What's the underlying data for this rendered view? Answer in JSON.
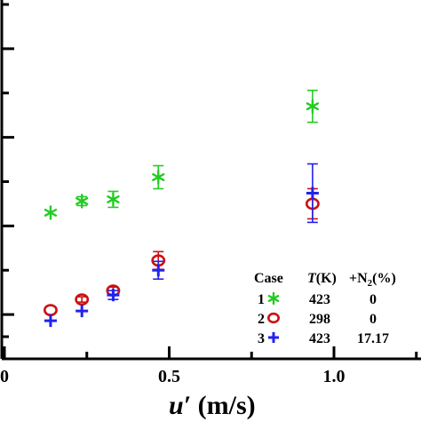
{
  "chart_data": {
    "type": "scatter",
    "title": "",
    "xlabel_main": "u′",
    "xlabel_unit": " (m/s)",
    "ylabel": "",
    "xlim": [
      0.0,
      1.3
    ],
    "x_ticks": [
      {
        "value": 0.0,
        "label": "0"
      },
      {
        "value": 0.5,
        "label": "0.5"
      },
      {
        "value": 1.0,
        "label": "1.0"
      }
    ],
    "ylim": [
      0.0,
      4.05
    ],
    "y_major_ticks": [
      0.5,
      1.5,
      2.5,
      3.5
    ],
    "y_minor_ticks": [
      0.25,
      1.0,
      2.0,
      3.0,
      4.0
    ],
    "colors": {
      "case1": "#22cc22",
      "case2": "#cc1111",
      "case3": "#2222ee"
    },
    "series": [
      {
        "name": "1",
        "marker": "asterisk",
        "color": "#22cc22",
        "points": [
          {
            "x": 0.14,
            "y": 1.65,
            "err": 0
          },
          {
            "x": 0.235,
            "y": 1.78,
            "err": 0.05
          },
          {
            "x": 0.33,
            "y": 1.8,
            "err": 0.09
          },
          {
            "x": 0.467,
            "y": 2.05,
            "err": 0.13
          },
          {
            "x": 0.935,
            "y": 2.85,
            "err": 0.18
          }
        ]
      },
      {
        "name": "2",
        "marker": "circle",
        "color": "#cc1111",
        "points": [
          {
            "x": 0.14,
            "y": 0.55,
            "err": 0
          },
          {
            "x": 0.235,
            "y": 0.67,
            "err": 0.03
          },
          {
            "x": 0.33,
            "y": 0.77,
            "err": 0.04
          },
          {
            "x": 0.467,
            "y": 1.11,
            "err": 0.1
          },
          {
            "x": 0.935,
            "y": 1.75,
            "err": 0.17
          }
        ]
      },
      {
        "name": "3",
        "marker": "plus",
        "color": "#2222ee",
        "points": [
          {
            "x": 0.14,
            "y": 0.43,
            "err": 0
          },
          {
            "x": 0.235,
            "y": 0.54,
            "err": 0
          },
          {
            "x": 0.33,
            "y": 0.72,
            "err": 0.05
          },
          {
            "x": 0.467,
            "y": 1.0,
            "err": 0.1
          },
          {
            "x": 0.935,
            "y": 1.87,
            "err": 0.33
          }
        ]
      }
    ],
    "legend": {
      "position": "bottom-right",
      "headers": [
        "Case",
        "T(K)",
        "+N2(%)"
      ],
      "rows": [
        {
          "case": "1",
          "marker": "asterisk",
          "color": "#22cc22",
          "t": "423",
          "n2": "0"
        },
        {
          "case": "2",
          "marker": "circle",
          "color": "#cc1111",
          "t": "298",
          "n2": "0"
        },
        {
          "case": "3",
          "marker": "plus",
          "color": "#2222ee",
          "t": "423",
          "n2": "17.17"
        }
      ]
    }
  }
}
